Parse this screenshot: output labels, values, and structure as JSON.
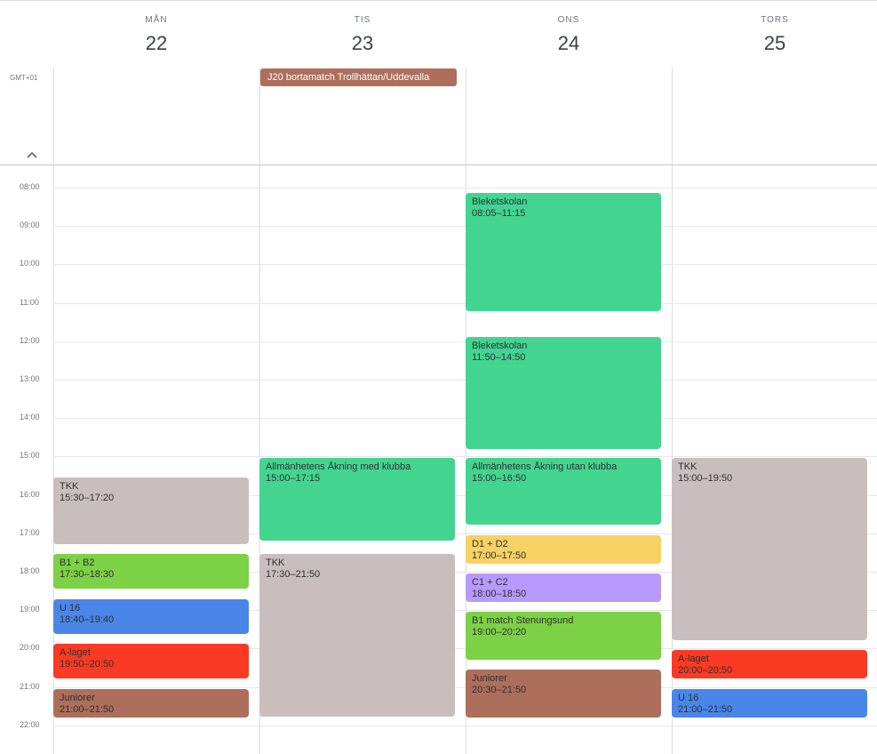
{
  "timezone": "GMT+01",
  "days": [
    {
      "name": "MÅN",
      "num": "22"
    },
    {
      "name": "TIS",
      "num": "23"
    },
    {
      "name": "ONS",
      "num": "24"
    },
    {
      "name": "TORS",
      "num": "25"
    }
  ],
  "hours": [
    "08:00",
    "09:00",
    "10:00",
    "11:00",
    "12:00",
    "13:00",
    "14:00",
    "15:00",
    "16:00",
    "17:00",
    "18:00",
    "19:00",
    "20:00",
    "21:00",
    "22:00"
  ],
  "allday_events": [
    {
      "day": 1,
      "title": "J20 bortamatch Trollhättan/Uddevalla",
      "color": "#ad6f5c"
    }
  ],
  "events": [
    {
      "day": 0,
      "title": "TKK",
      "time": "15:30–17:20",
      "start": 15.5,
      "end": 17.333,
      "color": "#c9bebe"
    },
    {
      "day": 0,
      "title": "B1 + B2",
      "time": "17:30–18:30",
      "start": 17.5,
      "end": 18.5,
      "color": "#7dd145"
    },
    {
      "day": 0,
      "title": "U 16",
      "time": "18:40–19:40",
      "start": 18.667,
      "end": 19.667,
      "color": "#4a86e8"
    },
    {
      "day": 0,
      "title": "A-laget",
      "time": "19:50–20:50",
      "start": 19.833,
      "end": 20.833,
      "color": "#fb3a24"
    },
    {
      "day": 0,
      "title": "Juniorer",
      "time": "21:00–21:50",
      "start": 21.0,
      "end": 21.833,
      "color": "#ad6f5c"
    },
    {
      "day": 1,
      "title": "Allmänhetens Åkning med klubba",
      "time": "15:00–17:15",
      "start": 15.0,
      "end": 17.25,
      "color": "#43d590"
    },
    {
      "day": 1,
      "title": "TKK",
      "time": "17:30–21:50",
      "start": 17.5,
      "end": 21.833,
      "color": "#c9bebe"
    },
    {
      "day": 2,
      "title": "Bleketskolan",
      "time": "08:05–11:15",
      "start": 8.083,
      "end": 11.25,
      "color": "#43d590"
    },
    {
      "day": 2,
      "title": "Bleketskolan",
      "time": "11:50–14:50",
      "start": 11.833,
      "end": 14.833,
      "color": "#43d590"
    },
    {
      "day": 2,
      "title": "Allmänhetens Åkning utan klubba",
      "time": "15:00–16:50",
      "start": 15.0,
      "end": 16.833,
      "color": "#43d590"
    },
    {
      "day": 2,
      "title": "D1 + D2",
      "time": "17:00–17:50",
      "start": 17.0,
      "end": 17.833,
      "color": "#f8d163"
    },
    {
      "day": 2,
      "title": "C1 + C2",
      "time": "18:00–18:50",
      "start": 18.0,
      "end": 18.833,
      "color": "#b89afc"
    },
    {
      "day": 2,
      "title": "B1 match Stenungsund",
      "time": "19:00–20:20",
      "start": 19.0,
      "end": 20.333,
      "color": "#7dd145"
    },
    {
      "day": 2,
      "title": "Juniorer",
      "time": "20:30–21:50",
      "start": 20.5,
      "end": 21.833,
      "color": "#ad6f5c"
    },
    {
      "day": 3,
      "title": "TKK",
      "time": "15:00–19:50",
      "start": 15.0,
      "end": 19.833,
      "color": "#c9bebe"
    },
    {
      "day": 3,
      "title": "A-laget",
      "time": "20:00–20:50",
      "start": 20.0,
      "end": 20.833,
      "color": "#fb3a24"
    },
    {
      "day": 3,
      "title": "U 16",
      "time": "21:00–21:50",
      "start": 21.0,
      "end": 21.833,
      "color": "#4a86e8"
    }
  ]
}
